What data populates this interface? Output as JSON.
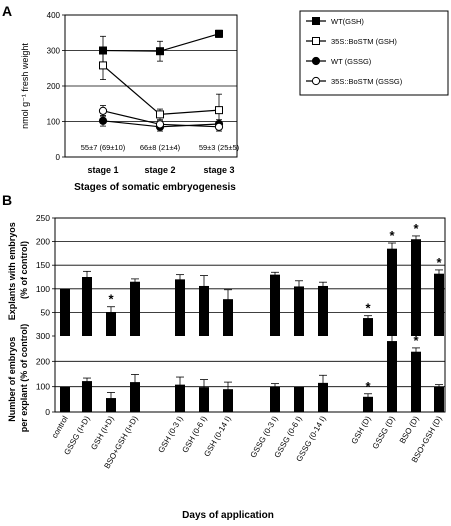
{
  "figure": {
    "panel_a_label": "A",
    "panel_b_label": "B"
  },
  "chart_data": [
    {
      "type": "line",
      "panel": "A",
      "xlabel": "Stages of somatic embryogenesis",
      "ylabel": "nmol g⁻¹ fresh weight",
      "categories": [
        "stage 1",
        "stage 2",
        "stage 3"
      ],
      "ylim": [
        0,
        400
      ],
      "yticks": [
        0,
        100,
        200,
        300,
        400
      ],
      "grid": true,
      "legend_position": "right",
      "series": [
        {
          "name": "WT(GSH)",
          "marker": "filled-square",
          "values": [
            300,
            298,
            347
          ],
          "errors": [
            40,
            28,
            10
          ]
        },
        {
          "name": "35S::BoSTM (GSH)",
          "marker": "open-square",
          "values": [
            258,
            120,
            132
          ],
          "errors": [
            40,
            15,
            45
          ]
        },
        {
          "name": "WT (GSSG)",
          "marker": "filled-circle",
          "values": [
            102,
            85,
            93
          ],
          "errors": [
            15,
            12,
            12
          ]
        },
        {
          "name": "35S::BoSTM (GSSG)",
          "marker": "open-circle",
          "values": [
            130,
            92,
            85
          ],
          "errors": [
            15,
            10,
            12
          ]
        }
      ],
      "annotations": [
        "55±7 (69±10)",
        "66±8 (21±4)",
        "59±3 (25±5)"
      ]
    },
    {
      "type": "bar",
      "panel": "B-top",
      "ylabel": "Explants with embryos (% of control)",
      "ylim": [
        0,
        250
      ],
      "yticks": [
        0,
        50,
        100,
        150,
        200,
        250
      ],
      "grid": true,
      "categories": [
        "control",
        "GSSG (I+D)",
        "GSH (I+D)",
        "BSO+GSH (I+D)",
        "GSH (0-3 I)",
        "GSH (0-6 I)",
        "GSH (0-14 I)",
        "GSSG (0-3 I)",
        "GSSG (0-6 I)",
        "GSSG (0-14 I)",
        "GSH (D)",
        "GSSG (D)",
        "BSO (D)",
        "BSO+GSH (D)"
      ],
      "values": [
        100,
        125,
        50,
        115,
        120,
        106,
        78,
        130,
        105,
        106,
        38,
        185,
        205,
        132
      ],
      "errors": [
        0,
        12,
        12,
        6,
        10,
        22,
        20,
        5,
        12,
        8,
        5,
        12,
        7,
        8
      ],
      "significant": [
        false,
        false,
        true,
        false,
        false,
        false,
        false,
        false,
        false,
        false,
        true,
        true,
        true,
        true
      ],
      "significance_mark": "*"
    },
    {
      "type": "bar",
      "panel": "B-bottom",
      "ylabel": "Number of embryos per explant (% of control)",
      "xlabel": "Days of application",
      "ylim": [
        0,
        300
      ],
      "yticks": [
        0,
        100,
        200,
        300
      ],
      "grid": true,
      "categories": [
        "control",
        "GSSG (I+D)",
        "GSH (I+D)",
        "BSO+GSH (I+D)",
        "GSH (0-3 I)",
        "GSH (0-6 I)",
        "GSH (0-14 I)",
        "GSSG (0-3 I)",
        "GSSG (0-6 I)",
        "GSSG (0-14 I)",
        "GSH (D)",
        "GSSG (D)",
        "BSO (D)",
        "BSO+GSH (D)"
      ],
      "values": [
        100,
        122,
        55,
        118,
        108,
        98,
        90,
        100,
        100,
        115,
        60,
        280,
        238,
        100
      ],
      "errors": [
        0,
        12,
        22,
        30,
        30,
        30,
        28,
        12,
        0,
        30,
        12,
        32,
        15,
        8
      ],
      "significant": [
        false,
        false,
        false,
        false,
        false,
        false,
        false,
        false,
        false,
        false,
        true,
        true,
        true,
        false
      ],
      "significance_mark": "*"
    }
  ]
}
